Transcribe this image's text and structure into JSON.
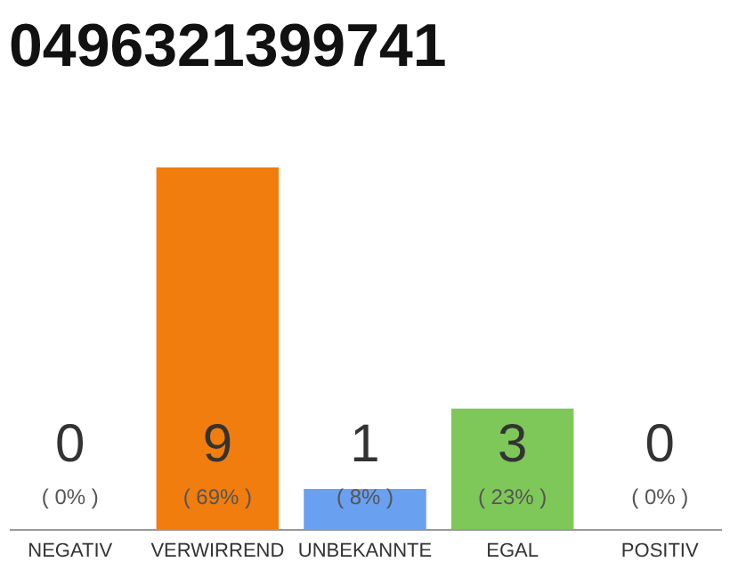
{
  "chart_data": {
    "type": "bar",
    "title": "0496321399741",
    "categories": [
      "NEGATIV",
      "VERWIRREND",
      "UNBEKANNTE",
      "EGAL",
      "POSITIV"
    ],
    "values": [
      0,
      9,
      1,
      3,
      0
    ],
    "colors": [
      "#e0e0e0",
      "#f07d0e",
      "#6aa0f0",
      "#7ec85a",
      "#e0e0e0"
    ],
    "ylim": [
      0,
      9
    ],
    "tick_labels": "x",
    "data_labels": true,
    "annotations": [
      "( 0% )",
      "( 69% )",
      "( 8% )",
      "( 23% )",
      "( 0% )"
    ]
  }
}
